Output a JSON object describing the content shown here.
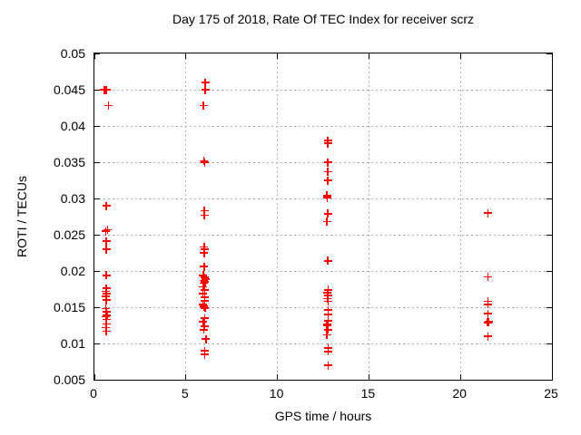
{
  "title": "Day 175 of 2018, Rate Of TEC Index for receiver scrz",
  "chart_data": {
    "type": "scatter",
    "title": "Day 175 of 2018, Rate Of TEC Index for receiver scrz",
    "xlabel": "GPS time / hours",
    "ylabel": "ROTI / TECUs",
    "xlim": [
      0,
      25
    ],
    "ylim": [
      0.005,
      0.05
    ],
    "xticks": [
      0,
      5,
      10,
      15,
      20,
      25
    ],
    "yticks": [
      0.005,
      0.01,
      0.015,
      0.02,
      0.025,
      0.03,
      0.035,
      0.04,
      0.045,
      0.05
    ],
    "grid": true,
    "legend": "none",
    "marker": "plus",
    "marker_color": "#ff0000",
    "series": [
      {
        "name": "ROTI",
        "points": [
          [
            0.54,
            0.045
          ],
          [
            0.66,
            0.045
          ],
          [
            0.76,
            0.0428
          ],
          [
            0.66,
            0.029
          ],
          [
            0.71,
            0.0257
          ],
          [
            0.63,
            0.0255
          ],
          [
            0.66,
            0.0241
          ],
          [
            0.66,
            0.023
          ],
          [
            0.66,
            0.0194
          ],
          [
            0.66,
            0.0176
          ],
          [
            0.63,
            0.0172
          ],
          [
            0.66,
            0.0169
          ],
          [
            0.63,
            0.0165
          ],
          [
            0.66,
            0.016
          ],
          [
            0.63,
            0.0148
          ],
          [
            0.66,
            0.0144
          ],
          [
            0.69,
            0.0139
          ],
          [
            0.63,
            0.0137
          ],
          [
            0.66,
            0.0133
          ],
          [
            0.66,
            0.0127
          ],
          [
            0.63,
            0.0122
          ],
          [
            0.66,
            0.0117
          ],
          [
            6.06,
            0.046
          ],
          [
            6.06,
            0.045
          ],
          [
            5.96,
            0.0428
          ],
          [
            5.98,
            0.0352
          ],
          [
            6.03,
            0.035
          ],
          [
            6.01,
            0.0283
          ],
          [
            6.01,
            0.0277
          ],
          [
            6.0,
            0.0233
          ],
          [
            6.03,
            0.023
          ],
          [
            6.0,
            0.0225
          ],
          [
            6.0,
            0.0206
          ],
          [
            5.95,
            0.0194
          ],
          [
            6.02,
            0.0191
          ],
          [
            6.08,
            0.0189
          ],
          [
            5.98,
            0.0187
          ],
          [
            6.05,
            0.0185
          ],
          [
            6.0,
            0.0183
          ],
          [
            5.95,
            0.0178
          ],
          [
            6.02,
            0.0174
          ],
          [
            5.93,
            0.0169
          ],
          [
            6.02,
            0.0164
          ],
          [
            6.02,
            0.0159
          ],
          [
            5.93,
            0.0154
          ],
          [
            6.0,
            0.0151
          ],
          [
            6.05,
            0.0149
          ],
          [
            6.02,
            0.0135
          ],
          [
            5.95,
            0.013
          ],
          [
            6.02,
            0.0124
          ],
          [
            5.98,
            0.0119
          ],
          [
            6.09,
            0.0106
          ],
          [
            6.02,
            0.009
          ],
          [
            6.02,
            0.0085
          ],
          [
            12.75,
            0.038
          ],
          [
            12.75,
            0.0376
          ],
          [
            12.75,
            0.035
          ],
          [
            12.75,
            0.0337
          ],
          [
            12.75,
            0.0325
          ],
          [
            12.7,
            0.0304
          ],
          [
            12.73,
            0.0301
          ],
          [
            12.75,
            0.0279
          ],
          [
            12.7,
            0.0268
          ],
          [
            12.75,
            0.0214
          ],
          [
            12.78,
            0.0174
          ],
          [
            12.73,
            0.017
          ],
          [
            12.78,
            0.0166
          ],
          [
            12.73,
            0.0162
          ],
          [
            12.78,
            0.0158
          ],
          [
            12.78,
            0.0146
          ],
          [
            12.78,
            0.014
          ],
          [
            12.78,
            0.0131
          ],
          [
            12.73,
            0.0127
          ],
          [
            12.7,
            0.0125
          ],
          [
            12.78,
            0.0119
          ],
          [
            12.7,
            0.0112
          ],
          [
            12.78,
            0.0094
          ],
          [
            12.78,
            0.0089
          ],
          [
            12.78,
            0.007
          ],
          [
            21.5,
            0.028
          ],
          [
            21.5,
            0.0192
          ],
          [
            21.5,
            0.0158
          ],
          [
            21.5,
            0.0154
          ],
          [
            21.5,
            0.0141
          ],
          [
            21.55,
            0.013
          ],
          [
            21.48,
            0.0129
          ],
          [
            21.5,
            0.011
          ]
        ]
      }
    ]
  }
}
